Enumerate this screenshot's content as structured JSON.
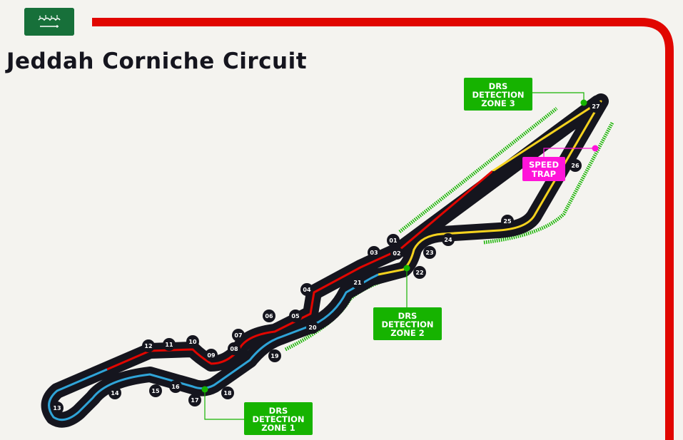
{
  "circuit": {
    "title": "Jeddah Corniche Circuit"
  },
  "colors": {
    "frame_red": "#e10600",
    "sector1": "#e10600",
    "sector2": "#2fa4d8",
    "sector3": "#f5d21e",
    "track": "#15151e",
    "drs_green": "#16b300",
    "speed_trap": "#ff14d9",
    "flag_green": "#17703a"
  },
  "icons": [
    "saudi-flag-icon",
    "chequered-flag-icon",
    "chevron-direction-icon"
  ],
  "turns": [
    "01",
    "02",
    "03",
    "04",
    "05",
    "06",
    "07",
    "08",
    "09",
    "10",
    "11",
    "12",
    "13",
    "14",
    "15",
    "16",
    "17",
    "18",
    "19",
    "20",
    "21",
    "22",
    "23",
    "24",
    "25",
    "26",
    "27"
  ],
  "drs_boxes": [
    {
      "line1": "DRS",
      "line2": "DETECTION",
      "line3": "ZONE 1"
    },
    {
      "line1": "DRS",
      "line2": "DETECTION",
      "line3": "ZONE 2"
    },
    {
      "line1": "DRS",
      "line2": "DETECTION",
      "line3": "ZONE 3"
    }
  ],
  "speed_trap": {
    "line1": "SPEED",
    "line2": "TRAP"
  }
}
